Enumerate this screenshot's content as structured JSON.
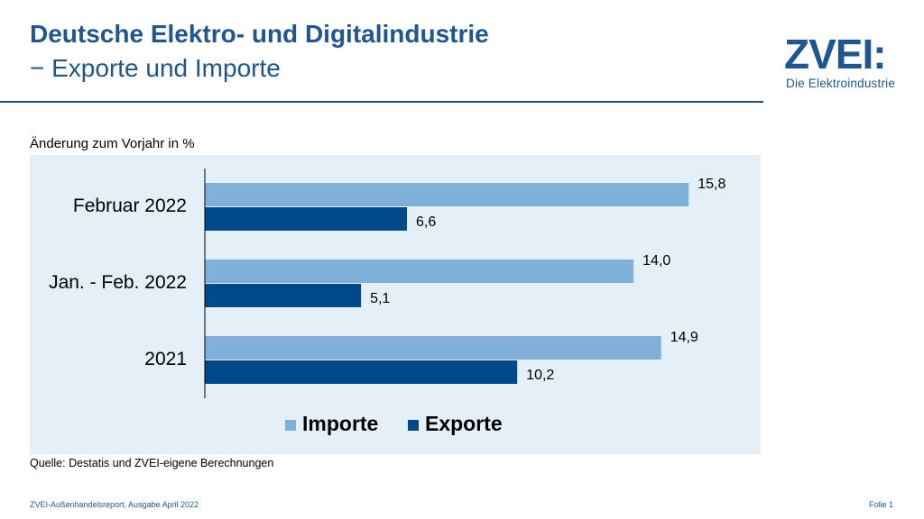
{
  "header": {
    "title_line1": "Deutsche Elektro- und Digitalindustrie",
    "title_line2": "− Exporte und Importe"
  },
  "logo": {
    "mark": "ZVEI:",
    "tagline": "Die Elektroindustrie"
  },
  "chart_data": {
    "type": "bar",
    "orientation": "horizontal",
    "subtitle": "Änderung zum Vorjahr in %",
    "categories": [
      "Februar 2022",
      "Jan. - Feb. 2022",
      "2021"
    ],
    "series": [
      {
        "name": "Importe",
        "values": [
          15.8,
          14.0,
          14.9
        ],
        "labels": [
          "15,8",
          "14,0",
          "14,9"
        ],
        "color": "#7eb0d9"
      },
      {
        "name": "Exporte",
        "values": [
          6.6,
          5.1,
          10.2
        ],
        "labels": [
          "6,6",
          "5,1",
          "10,2"
        ],
        "color": "#004a8c"
      }
    ],
    "xlim": [
      0,
      16.5
    ],
    "grid": false,
    "legend_position": "bottom"
  },
  "source": "Quelle: Destatis und ZVEI-eigene Berechnungen",
  "footer": {
    "left": "ZVEI-Außenhandelsreport, Ausgabe April 2022",
    "right": "Folie 1"
  }
}
